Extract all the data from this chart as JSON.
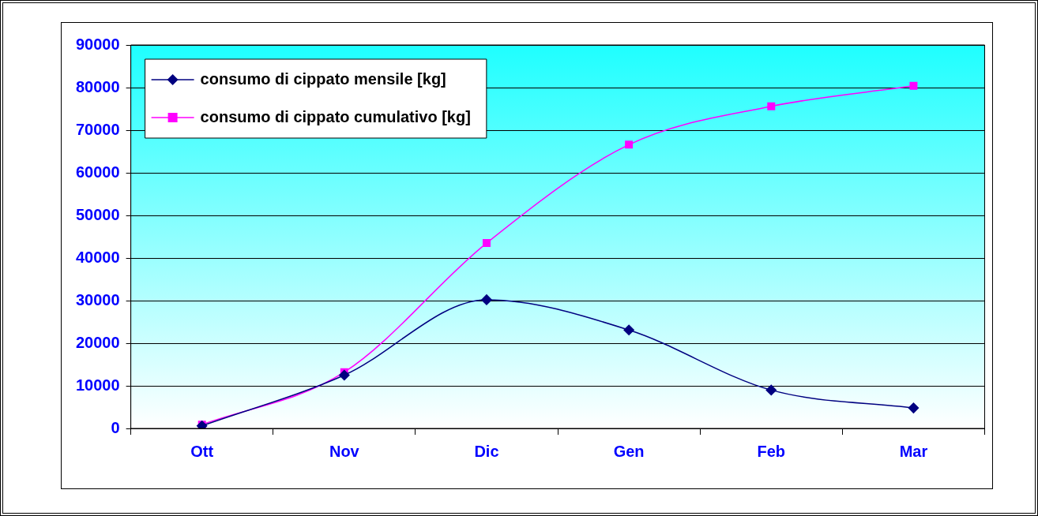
{
  "chart_data": {
    "type": "line",
    "categories": [
      "Ott",
      "Nov",
      "Dic",
      "Gen",
      "Feb",
      "Mar"
    ],
    "series": [
      {
        "name": "consumo di cippato mensile [kg]",
        "color": "#000080",
        "marker": "diamond",
        "values": [
          600,
          12500,
          30200,
          23100,
          9000,
          4800
        ]
      },
      {
        "name": "consumo di cippato cumulativo [kg]",
        "color": "#ff00ff",
        "marker": "square",
        "values": [
          900,
          13200,
          43500,
          66600,
          75600,
          80400
        ]
      }
    ],
    "ylim": [
      0,
      90000
    ],
    "yticks": [
      0,
      10000,
      20000,
      30000,
      40000,
      50000,
      60000,
      70000,
      80000,
      90000
    ],
    "grid": "y",
    "legend": "top left",
    "line_style": "solid"
  }
}
